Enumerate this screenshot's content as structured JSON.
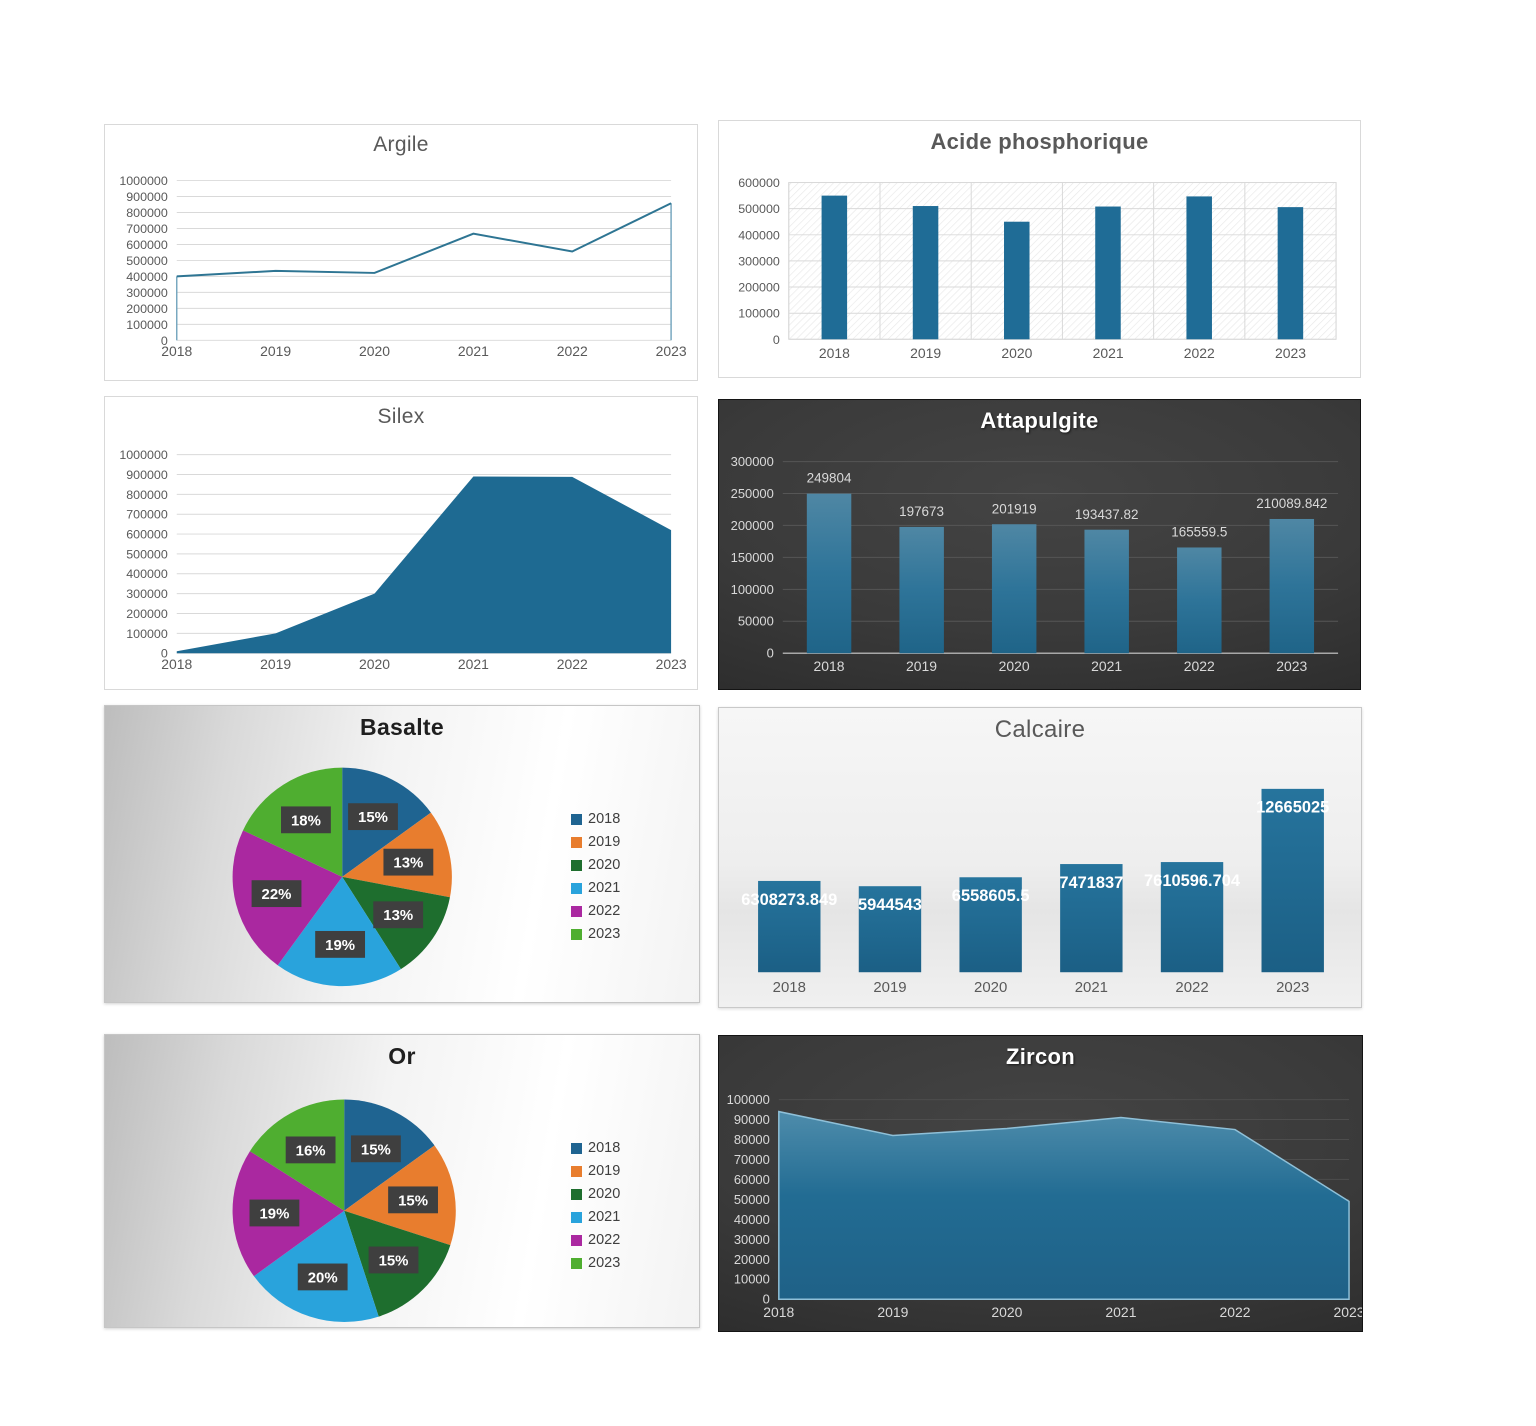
{
  "colors": {
    "series": "#1F6C96",
    "line": "#2E7593",
    "line_edge": "#6FA3BC",
    "area_fill": "#1E6A92",
    "grid_light": "#d9d9d9",
    "grid_dark": "#565656",
    "text_light_theme": "#595959",
    "text_dark_theme": "#D9D9D9",
    "data_label_dark_theme": "#D9D9D9",
    "data_label_white": "#FFFFFF",
    "pie": [
      "#1F6491",
      "#E87D2E",
      "#1E6E2E",
      "#29A3DC",
      "#AA28A0",
      "#4FAE30"
    ],
    "pie_label_box": "#3F3F3F",
    "pie_label_text": "#FFFFFF"
  },
  "chart_data": [
    {
      "id": "argile",
      "type": "line",
      "title": "Argile",
      "theme": "plain",
      "categories": [
        "2018",
        "2019",
        "2020",
        "2021",
        "2022",
        "2023"
      ],
      "values": [
        400000,
        435000,
        422000,
        668000,
        556000,
        858000
      ],
      "ylim": [
        0,
        1000000
      ],
      "ystep": 100000,
      "grid": true,
      "legend": "none"
    },
    {
      "id": "acide",
      "type": "bar",
      "title": "Acide phosphorique",
      "theme": "hatch",
      "categories": [
        "2018",
        "2019",
        "2020",
        "2021",
        "2022",
        "2023"
      ],
      "values": [
        550000,
        510000,
        450000,
        508000,
        547000,
        506000
      ],
      "ylim": [
        0,
        600000
      ],
      "ystep": 100000,
      "grid": true,
      "legend": "none"
    },
    {
      "id": "silex",
      "type": "area",
      "title": "Silex",
      "theme": "plain",
      "categories": [
        "2018",
        "2019",
        "2020",
        "2021",
        "2022",
        "2023"
      ],
      "values": [
        10000,
        100000,
        300000,
        890000,
        888000,
        620000
      ],
      "ylim": [
        0,
        1000000
      ],
      "ystep": 100000,
      "grid": true,
      "legend": "none"
    },
    {
      "id": "attapulgite",
      "type": "bar",
      "title": "Attapulgite",
      "theme": "dark",
      "categories": [
        "2018",
        "2019",
        "2020",
        "2021",
        "2022",
        "2023"
      ],
      "values": [
        249804,
        197673,
        201919,
        193437.82,
        165559.5,
        210089.842
      ],
      "data_labels": [
        "249804",
        "197673",
        "201919",
        "193437.82",
        "165559.5",
        "210089.842"
      ],
      "ylim": [
        0,
        300000
      ],
      "ystep": 50000,
      "grid": true,
      "legend": "none"
    },
    {
      "id": "basalte",
      "type": "pie",
      "title": "Basalte",
      "theme": "silver",
      "categories": [
        "2018",
        "2019",
        "2020",
        "2021",
        "2022",
        "2023"
      ],
      "values": [
        15,
        13,
        13,
        19,
        22,
        18
      ],
      "data_labels": [
        "15%",
        "13%",
        "13%",
        "19%",
        "22%",
        "18%"
      ],
      "legend": "right"
    },
    {
      "id": "calcaire",
      "type": "bar",
      "title": "Calcaire",
      "theme": "graygrad",
      "categories": [
        "2018",
        "2019",
        "2020",
        "2021",
        "2022",
        "2023"
      ],
      "values": [
        6308273.849,
        5944543,
        6558605.5,
        7471837,
        7610596.704,
        12665025
      ],
      "data_labels": [
        "6308273.849",
        "5944543",
        "6558605.5",
        "7471837",
        "7610596.704",
        "12665025"
      ],
      "ylim": [
        0,
        12900000
      ],
      "y_axis": false,
      "grid": false,
      "legend": "none"
    },
    {
      "id": "or",
      "type": "pie",
      "title": "Or",
      "theme": "silver",
      "categories": [
        "2018",
        "2019",
        "2020",
        "2021",
        "2022",
        "2023"
      ],
      "values": [
        15,
        15,
        15,
        20,
        19,
        16
      ],
      "data_labels": [
        "15%",
        "15%",
        "15%",
        "20%",
        "19%",
        "16%"
      ],
      "legend": "right"
    },
    {
      "id": "zircon",
      "type": "area",
      "title": "Zircon",
      "theme": "dark",
      "categories": [
        "2018",
        "2019",
        "2020",
        "2021",
        "2022",
        "2023"
      ],
      "values": [
        94000,
        82000,
        85500,
        91000,
        85000,
        49000
      ],
      "ylim": [
        0,
        100000
      ],
      "ystep": 10000,
      "grid": true,
      "legend": "none"
    }
  ]
}
